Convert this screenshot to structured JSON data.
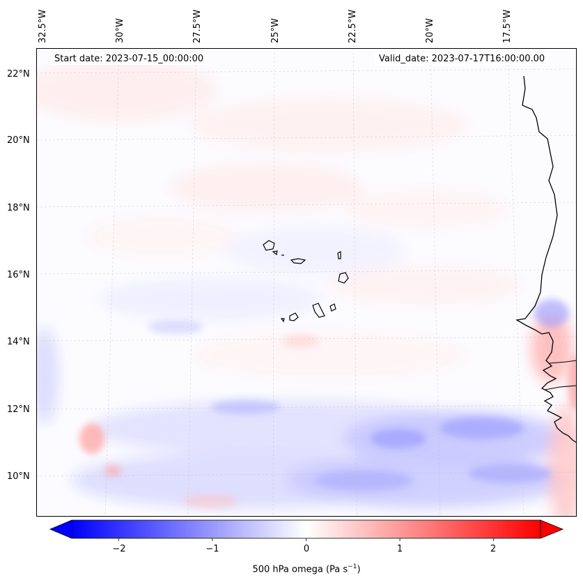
{
  "map": {
    "start_date": "Start date: 2023-07-15_00:00:00",
    "valid_date": "Valid_date: 2023-07-17T16:00:00.00",
    "lon_labels": [
      "32.5°W",
      "30°W",
      "27.5°W",
      "25°W",
      "22.5°W",
      "20°W",
      "17.5°W"
    ],
    "lat_labels": [
      "22°N",
      "20°N",
      "18°N",
      "16°N",
      "14°N",
      "12°N",
      "10°N"
    ],
    "colors": {
      "negative": "#0000ff",
      "zero": "#ffffff",
      "positive": "#ff0000",
      "coast": "#000000",
      "grid": "#bbbbbb"
    }
  },
  "colorbar": {
    "ticks": [
      "−2",
      "−1",
      "0",
      "1",
      "2"
    ],
    "tick_values": [
      -2,
      -1,
      0,
      1,
      2
    ],
    "range": [
      -2.5,
      2.5
    ],
    "label": "500 hPa omega (Pa s",
    "label_sup": "−1",
    "label_end": ")"
  }
}
